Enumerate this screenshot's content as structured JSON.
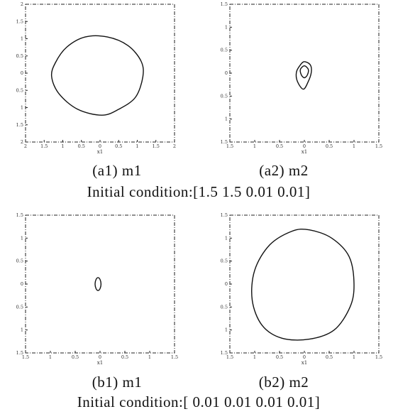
{
  "captions": {
    "a1": "(a1) m1",
    "a2": "(a2) m2",
    "cond_a": "Initial condition:[1.5  1.5  0.01  0.01]",
    "b1": "(b1) m1",
    "b2": "(b2) m2",
    "cond_b": "Initial condition:[ 0.01  0.01  0.01  0.01]"
  },
  "chart_data": [
    {
      "id": "a1",
      "type": "line",
      "title": "",
      "xlabel": "x1",
      "ylabel": "",
      "xlim": [
        -2,
        2
      ],
      "ylim": [
        -2,
        2
      ],
      "xticks": [
        -2,
        -1.5,
        -1,
        -0.5,
        0,
        0.5,
        1,
        1.5,
        2
      ],
      "xticklabels": [
        "2",
        "1.5",
        "1",
        "0.5",
        "0",
        "0.5",
        "1",
        "1.5",
        "2"
      ],
      "yticks": [
        2,
        1.5,
        1,
        0.5,
        0,
        -0.5,
        -1,
        -1.5,
        -2
      ],
      "yticklabels": [
        "2",
        "1.5",
        "1",
        "0.5",
        "0",
        "0.5",
        "1",
        "1.5",
        "2"
      ],
      "series": [
        {
          "x": [
            0.05,
            0.5,
            0.95,
            1.15,
            1.1,
            0.75,
            0.2,
            -0.4,
            -0.9,
            -1.2,
            -1.3,
            -1.1,
            -0.6,
            0.05
          ],
          "y": [
            -1.22,
            -1.05,
            -0.7,
            -0.1,
            0.35,
            0.8,
            1.05,
            1.05,
            0.75,
            0.3,
            -0.1,
            -0.6,
            -1.05,
            -1.22
          ]
        }
      ]
    },
    {
      "id": "a2",
      "type": "line",
      "title": "",
      "xlabel": "x1",
      "ylabel": "",
      "xlim": [
        -1.5,
        1.5
      ],
      "ylim": [
        -1.5,
        1.5
      ],
      "xticks": [
        -1.5,
        -1,
        -0.5,
        0,
        0.5,
        1,
        1.5
      ],
      "xticklabels": [
        "1.5",
        "1",
        "0.5",
        "0",
        "0.5",
        "1",
        "1.5"
      ],
      "yticks": [
        1.5,
        1,
        0.5,
        0,
        -0.5,
        -1,
        -1.5
      ],
      "yticklabels": [
        "1.5",
        "1",
        "0.5",
        "0",
        "0.5",
        "1",
        "1.5"
      ],
      "series": [
        {
          "x": [
            0.0,
            0.12,
            0.14,
            0.08,
            -0.02,
            -0.14,
            -0.16,
            -0.08,
            0.0
          ],
          "y": [
            0.25,
            0.18,
            0.02,
            -0.18,
            -0.35,
            -0.18,
            0.02,
            0.18,
            0.25
          ]
        },
        {
          "x": [
            0.0,
            0.08,
            0.06,
            0.0,
            -0.06,
            -0.08,
            0.0
          ],
          "y": [
            0.16,
            0.08,
            -0.04,
            -0.1,
            -0.04,
            0.08,
            0.16
          ]
        }
      ]
    },
    {
      "id": "b1",
      "type": "line",
      "title": "",
      "xlabel": "x1",
      "ylabel": "",
      "xlim": [
        -1.5,
        1.5
      ],
      "ylim": [
        -1.5,
        1.5
      ],
      "xticks": [
        -1.5,
        -1,
        -0.5,
        0,
        0.5,
        1,
        1.5
      ],
      "xticklabels": [
        "1.5",
        "1",
        "0.5",
        "0",
        "0.5",
        "1",
        "1.5"
      ],
      "yticks": [
        1.5,
        1,
        0.5,
        0,
        -0.5,
        -1,
        -1.5
      ],
      "yticklabels": [
        "1.5",
        "1",
        "0.5",
        "0",
        "0.5",
        "1",
        "1.5"
      ],
      "series": [
        {
          "x": [
            -0.04,
            0.0,
            0.02,
            0.0,
            -0.04,
            -0.08,
            -0.1,
            -0.08,
            -0.04
          ],
          "y": [
            0.14,
            0.1,
            0.0,
            -0.1,
            -0.14,
            -0.1,
            0.0,
            0.1,
            0.14
          ]
        }
      ]
    },
    {
      "id": "b2",
      "type": "line",
      "title": "",
      "xlabel": "x1",
      "ylabel": "",
      "xlim": [
        -1.5,
        1.5
      ],
      "ylim": [
        -1.5,
        1.5
      ],
      "xticks": [
        -1.5,
        -1,
        -0.5,
        0,
        0.5,
        1,
        1.5
      ],
      "xticklabels": [
        "1.5",
        "1",
        "0.5",
        "0",
        "0.5",
        "1",
        "1.5"
      ],
      "yticks": [
        1.5,
        1,
        0.5,
        0,
        -0.5,
        -1,
        -1.5
      ],
      "yticklabels": [
        "1.5",
        "1",
        "0.5",
        "0",
        "0.5",
        "1",
        "1.5"
      ],
      "series": [
        {
          "x": [
            0.1,
            0.55,
            0.9,
            1.0,
            0.92,
            0.6,
            0.1,
            -0.45,
            -0.85,
            -1.05,
            -1.0,
            -0.7,
            -0.25,
            0.1
          ],
          "y": [
            1.18,
            1.0,
            0.6,
            0.0,
            -0.5,
            -1.0,
            -1.2,
            -1.18,
            -0.9,
            -0.35,
            0.3,
            0.85,
            1.15,
            1.18
          ]
        }
      ]
    }
  ]
}
